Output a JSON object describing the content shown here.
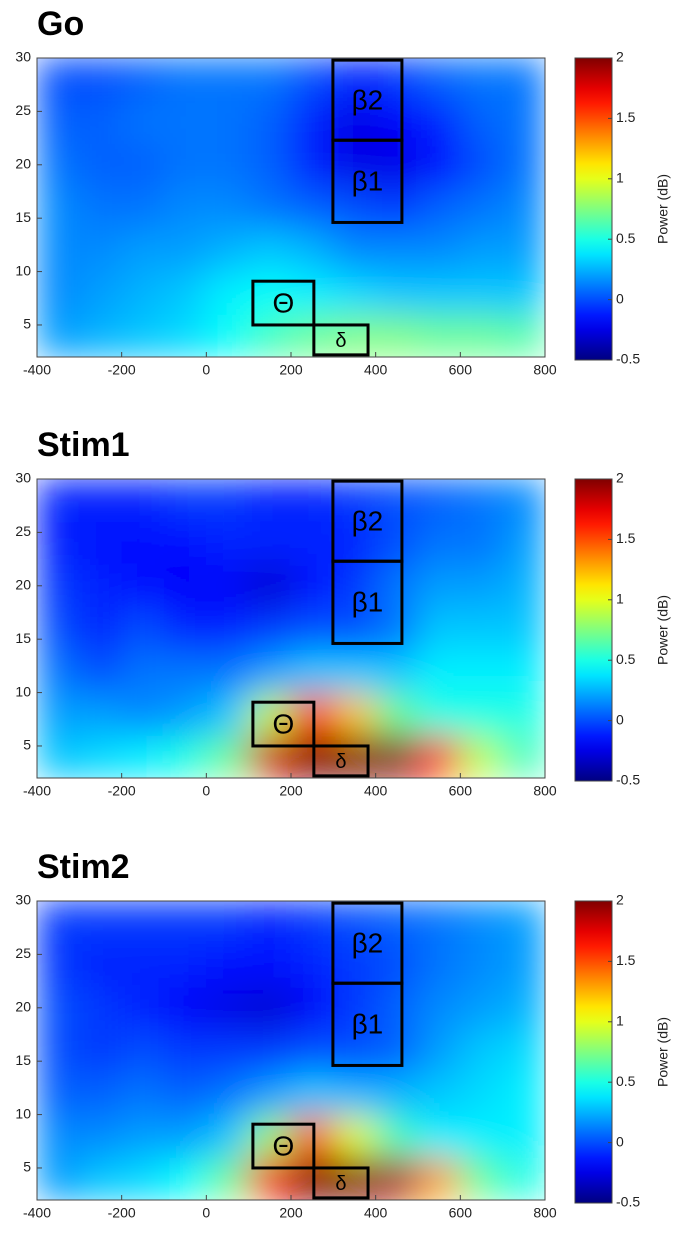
{
  "chart_data": [
    {
      "type": "heatmap",
      "title": "Go",
      "xlim": [
        -400,
        800
      ],
      "xticks": [
        -400,
        -200,
        0,
        200,
        400,
        600,
        800
      ],
      "ylim": [
        2,
        30
      ],
      "yticks": [
        5,
        10,
        15,
        20,
        25,
        30
      ],
      "x": [
        -350,
        -250,
        -150,
        -50,
        50,
        150,
        250,
        350,
        450,
        550,
        650,
        750
      ],
      "y": [
        4,
        8,
        12,
        16,
        20,
        24,
        28
      ],
      "z": [
        [
          0.2,
          0.25,
          0.3,
          0.35,
          0.45,
          0.6,
          0.7,
          0.75,
          0.75,
          0.7,
          0.7,
          0.65
        ],
        [
          0.15,
          0.2,
          0.25,
          0.3,
          0.4,
          0.45,
          0.4,
          0.35,
          0.3,
          0.3,
          0.3,
          0.3
        ],
        [
          0.15,
          0.15,
          0.2,
          0.2,
          0.25,
          0.3,
          0.25,
          0.15,
          0.15,
          0.15,
          0.2,
          0.2
        ],
        [
          0.15,
          0.1,
          0.1,
          0.15,
          0.15,
          0.1,
          0.05,
          0.0,
          -0.05,
          0.05,
          0.1,
          0.15
        ],
        [
          0.1,
          0.05,
          0.05,
          0.1,
          0.1,
          0.05,
          -0.1,
          -0.25,
          -0.25,
          -0.15,
          0.0,
          0.1
        ],
        [
          0.05,
          0.05,
          0.1,
          0.1,
          0.1,
          0.05,
          -0.1,
          -0.25,
          -0.2,
          -0.1,
          0.05,
          0.1
        ],
        [
          0.0,
          0.0,
          0.05,
          0.1,
          0.1,
          0.1,
          0.0,
          -0.1,
          -0.05,
          0.05,
          0.1,
          0.1
        ]
      ],
      "colorbar": {
        "label": "Power (dB)",
        "lim": [
          -0.5,
          2
        ],
        "ticks": [
          -0.5,
          0,
          0.5,
          1,
          1.5,
          2
        ]
      },
      "annotations": [
        {
          "label": "β2",
          "x": [
            299,
            462
          ],
          "y": [
            22.3,
            29.8
          ]
        },
        {
          "label": "β1",
          "x": [
            299,
            462
          ],
          "y": [
            14.6,
            22.3
          ]
        },
        {
          "label": "Θ",
          "x": [
            110,
            254
          ],
          "y": [
            5,
            9.1
          ]
        },
        {
          "label": "δ",
          "x": [
            254,
            382
          ],
          "y": [
            2.2,
            5
          ]
        }
      ]
    },
    {
      "type": "heatmap",
      "title": "Stim1",
      "xlim": [
        -400,
        800
      ],
      "xticks": [
        -400,
        -200,
        0,
        200,
        400,
        600,
        800
      ],
      "ylim": [
        2,
        30
      ],
      "yticks": [
        5,
        10,
        15,
        20,
        25,
        30
      ],
      "x": [
        -350,
        -250,
        -150,
        -50,
        50,
        150,
        250,
        350,
        450,
        550,
        650,
        750
      ],
      "y": [
        4,
        8,
        12,
        16,
        20,
        24,
        28
      ],
      "z": [
        [
          0.3,
          0.35,
          0.4,
          0.5,
          0.7,
          1.8,
          2.0,
          2.0,
          2.0,
          1.6,
          0.9,
          0.6
        ],
        [
          0.2,
          0.2,
          0.15,
          0.2,
          0.3,
          0.9,
          1.6,
          1.2,
          0.7,
          0.5,
          0.5,
          0.5
        ],
        [
          0.1,
          0.0,
          0.1,
          0.1,
          0.1,
          0.2,
          0.3,
          0.3,
          0.3,
          0.4,
          0.4,
          0.4
        ],
        [
          0.0,
          -0.1,
          0.0,
          -0.1,
          -0.1,
          -0.05,
          0.0,
          0.0,
          0.1,
          0.3,
          0.3,
          0.3
        ],
        [
          -0.05,
          -0.1,
          -0.15,
          -0.2,
          -0.2,
          -0.3,
          -0.15,
          -0.05,
          0.1,
          0.2,
          0.2,
          0.25
        ],
        [
          -0.1,
          -0.15,
          -0.15,
          -0.15,
          -0.1,
          -0.1,
          -0.1,
          -0.1,
          0.0,
          0.1,
          0.1,
          0.2
        ],
        [
          -0.1,
          -0.1,
          -0.1,
          -0.05,
          -0.05,
          -0.1,
          -0.1,
          -0.05,
          0.0,
          0.05,
          0.1,
          0.15
        ]
      ],
      "colorbar": {
        "label": "Power (dB)",
        "lim": [
          -0.5,
          2
        ],
        "ticks": [
          -0.5,
          0,
          0.5,
          1,
          1.5,
          2
        ]
      },
      "annotations": [
        {
          "label": "β2",
          "x": [
            299,
            462
          ],
          "y": [
            22.3,
            29.8
          ]
        },
        {
          "label": "β1",
          "x": [
            299,
            462
          ],
          "y": [
            14.6,
            22.3
          ]
        },
        {
          "label": "Θ",
          "x": [
            110,
            254
          ],
          "y": [
            5,
            9.1
          ]
        },
        {
          "label": "δ",
          "x": [
            254,
            382
          ],
          "y": [
            2.2,
            5
          ]
        }
      ]
    },
    {
      "type": "heatmap",
      "title": "Stim2",
      "xlim": [
        -400,
        800
      ],
      "xticks": [
        -400,
        -200,
        0,
        200,
        400,
        600,
        800
      ],
      "ylim": [
        2,
        30
      ],
      "yticks": [
        5,
        10,
        15,
        20,
        25,
        30
      ],
      "x": [
        -350,
        -250,
        -150,
        -50,
        50,
        150,
        250,
        350,
        450,
        550,
        650,
        750
      ],
      "y": [
        4,
        8,
        12,
        16,
        20,
        24,
        28
      ],
      "z": [
        [
          0.2,
          0.3,
          0.35,
          0.45,
          0.7,
          1.7,
          2.0,
          2.0,
          1.9,
          1.3,
          0.7,
          0.5
        ],
        [
          0.15,
          0.15,
          0.2,
          0.2,
          0.3,
          0.8,
          1.5,
          1.0,
          0.6,
          0.4,
          0.4,
          0.4
        ],
        [
          0.05,
          0.05,
          0.1,
          0.05,
          0.1,
          0.2,
          0.3,
          0.25,
          0.25,
          0.3,
          0.35,
          0.4
        ],
        [
          0.0,
          -0.05,
          0.0,
          -0.05,
          -0.05,
          -0.05,
          0.0,
          0.0,
          0.05,
          0.2,
          0.3,
          0.35
        ],
        [
          0.0,
          -0.05,
          -0.1,
          -0.2,
          -0.25,
          -0.3,
          -0.2,
          -0.05,
          0.05,
          0.15,
          0.2,
          0.25
        ],
        [
          -0.05,
          -0.1,
          -0.1,
          -0.1,
          -0.15,
          -0.15,
          -0.1,
          -0.05,
          0.0,
          0.1,
          0.15,
          0.2
        ],
        [
          -0.05,
          -0.05,
          -0.05,
          -0.05,
          -0.05,
          -0.1,
          -0.05,
          0.0,
          0.05,
          0.1,
          0.15,
          0.2
        ]
      ],
      "colorbar": {
        "label": "Power (dB)",
        "lim": [
          -0.5,
          2
        ],
        "ticks": [
          -0.5,
          0,
          0.5,
          1,
          1.5,
          2
        ]
      },
      "annotations": [
        {
          "label": "β2",
          "x": [
            299,
            462
          ],
          "y": [
            22.3,
            29.8
          ]
        },
        {
          "label": "β1",
          "x": [
            299,
            462
          ],
          "y": [
            14.6,
            22.3
          ]
        },
        {
          "label": "Θ",
          "x": [
            110,
            254
          ],
          "y": [
            5,
            9.1
          ]
        },
        {
          "label": "δ",
          "x": [
            254,
            382
          ],
          "y": [
            2.2,
            5
          ]
        }
      ]
    }
  ]
}
